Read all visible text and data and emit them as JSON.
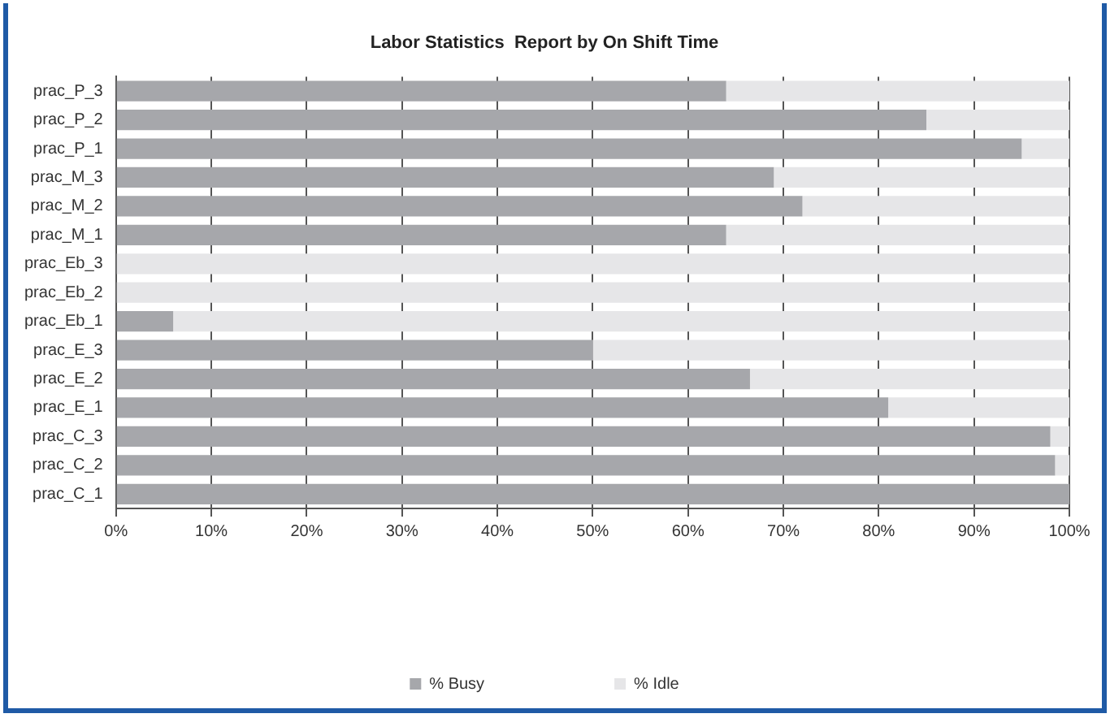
{
  "chart_data": {
    "type": "bar",
    "title": "Labor Statistics  Report by On Shift Time",
    "orientation": "horizontal",
    "stacked": true,
    "categories": [
      "prac_P_3",
      "prac_P_2",
      "prac_P_1",
      "prac_M_3",
      "prac_M_2",
      "prac_M_1",
      "prac_Eb_3",
      "prac_Eb_2",
      "prac_Eb_1",
      "prac_E_3",
      "prac_E_2",
      "prac_E_1",
      "prac_C_3",
      "prac_C_2",
      "prac_C_1"
    ],
    "series": [
      {
        "name": "% Busy",
        "color": "#a6a7ab",
        "values": [
          64,
          85,
          95,
          69,
          72,
          64,
          0,
          0,
          6,
          50,
          66.5,
          81,
          98,
          98.5,
          100
        ]
      },
      {
        "name": "% Idle",
        "color": "#e6e6e8",
        "values": [
          36,
          15,
          5,
          31,
          28,
          36,
          100,
          100,
          94,
          50,
          33.5,
          19,
          2,
          1.5,
          0
        ]
      }
    ],
    "xlim": [
      0,
      100
    ],
    "xticks": [
      {
        "value": 0,
        "label": "0%"
      },
      {
        "value": 10,
        "label": "10%"
      },
      {
        "value": 20,
        "label": "20%"
      },
      {
        "value": 30,
        "label": "30%"
      },
      {
        "value": 40,
        "label": "40%"
      },
      {
        "value": 50,
        "label": "50%"
      },
      {
        "value": 60,
        "label": "60%"
      },
      {
        "value": 70,
        "label": "70%"
      },
      {
        "value": 80,
        "label": "80%"
      },
      {
        "value": 90,
        "label": "90%"
      },
      {
        "value": 100,
        "label": "100%"
      }
    ],
    "grid": "x",
    "legend": "bottom"
  }
}
